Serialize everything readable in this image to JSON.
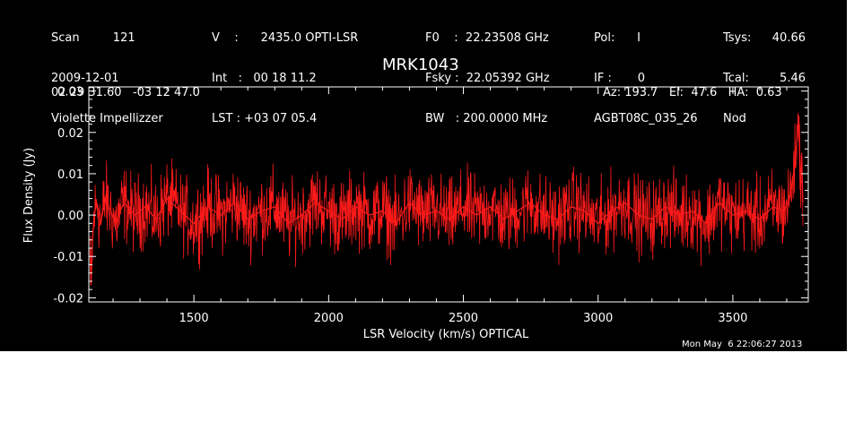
{
  "header": {
    "col1": [
      "Scan         121",
      "2009-12-01",
      "Violette Impellizzer"
    ],
    "col2": [
      "V    :      2435.0 OPTI-LSR",
      "Int   :   00 18 11.2",
      "LST : +03 07 05.4"
    ],
    "col3": [
      "F0    :  22.23508 GHz",
      "Fsky :  22.05392 GHz",
      "BW   : 200.0000 MHz"
    ],
    "col4": [
      "Pol:      I",
      "IF :       0",
      "AGBT08C_035_26"
    ],
    "col5": [
      "Tsys:",
      "Tcal:",
      "Nod"
    ],
    "col6": [
      "40.66",
      "5.46"
    ],
    "coords": "02 29 31.60   -03 12 47.0",
    "source": "MRK1043",
    "pointing": "Az: 193.7   El:  47.6   HA:  0.63"
  },
  "timestamp": "Mon May  6 22:06:27 2013",
  "colors": {
    "background": "#000000",
    "trace": "#ff1a1a",
    "axes": "#ffffff"
  },
  "chart_data": {
    "type": "line",
    "title": "MRK1043",
    "xlabel": "LSR Velocity (km/s) OPTICAL",
    "ylabel": "Flux Density (Jy)",
    "xlim": [
      1110,
      3780
    ],
    "ylim": [
      -0.021,
      0.031
    ],
    "xticks": [
      1500,
      2000,
      2500,
      3000,
      3500
    ],
    "xtick_labels": [
      "1500",
      "2000",
      "2500",
      "3000",
      "3500"
    ],
    "yticks": [
      -0.02,
      -0.01,
      0.0,
      0.01,
      0.02,
      0.03
    ],
    "ytick_labels": [
      "-0.02",
      "-0.01",
      "0.00",
      "0.01",
      "0.02",
      "0.03"
    ],
    "grid": false,
    "series": [
      {
        "color": "#ff1a1a",
        "x": [
          1115,
          1118,
          1121,
          1125,
          1130,
          1140,
          1155,
          1170,
          1190,
          1210,
          1240,
          1280,
          1320,
          1360,
          1400,
          1450,
          1500,
          1550,
          1600,
          1650,
          1700,
          1750,
          1800,
          1850,
          1900,
          1950,
          2000,
          2050,
          2100,
          2150,
          2200,
          2250,
          2300,
          2350,
          2400,
          2450,
          2500,
          2550,
          2600,
          2650,
          2700,
          2750,
          2800,
          2850,
          2900,
          2950,
          3000,
          3050,
          3100,
          3150,
          3200,
          3250,
          3300,
          3350,
          3400,
          3450,
          3500,
          3550,
          3600,
          3650,
          3690,
          3710,
          3720,
          3730,
          3740,
          3745,
          3750,
          3755,
          3760
        ],
        "y": [
          -0.008,
          -0.017,
          -0.012,
          -0.005,
          0.0,
          0.003,
          -0.002,
          0.004,
          0.001,
          -0.002,
          0.003,
          0.0,
          0.002,
          -0.001,
          0.004,
          0.001,
          -0.002,
          0.002,
          0.0,
          0.003,
          -0.001,
          0.001,
          0.002,
          -0.002,
          0.0,
          0.003,
          0.001,
          -0.001,
          0.002,
          0.0,
          0.001,
          -0.002,
          0.003,
          0.0,
          0.001,
          -0.001,
          0.002,
          0.0,
          0.002,
          -0.001,
          0.001,
          0.003,
          0.0,
          -0.001,
          0.002,
          0.001,
          -0.002,
          0.001,
          0.003,
          0.0,
          -0.001,
          0.002,
          0.0,
          0.001,
          -0.002,
          0.003,
          0.0,
          0.001,
          -0.001,
          0.002,
          0.001,
          0.004,
          0.008,
          0.012,
          0.02,
          0.024,
          0.006,
          0.015,
          0.003
        ]
      }
    ]
  }
}
